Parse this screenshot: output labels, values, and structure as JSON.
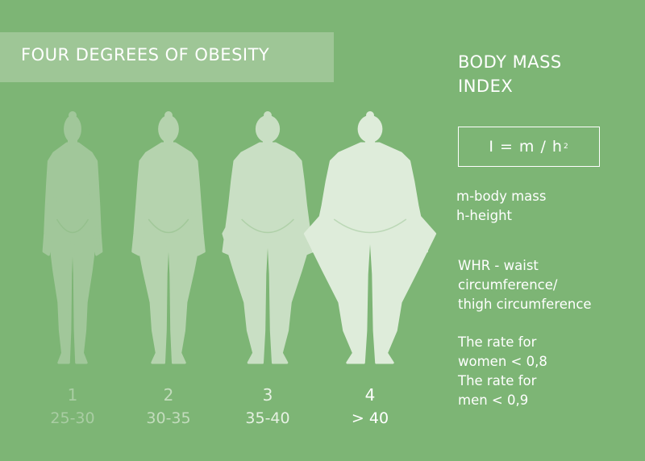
{
  "title": "FOUR DEGREES OF OBESITY",
  "bmi_title": [
    "BODY MASS",
    "INDEX"
  ],
  "formula": {
    "main": "I = m / h",
    "sup": "2"
  },
  "definitions": [
    "m-body mass",
    "h-height"
  ],
  "whr": [
    "WHR - waist",
    "circumference/",
    "thigh circumference"
  ],
  "rates": [
    "The rate for",
    "women < 0,8",
    "The rate for",
    "men < 0,9"
  ],
  "degrees": [
    {
      "number": "1",
      "range": "25-30",
      "fill": "#a1c79a",
      "num_color": "#a9cda3",
      "range_color": "#a9cda3"
    },
    {
      "number": "2",
      "range": "30-35",
      "fill": "#b5d3ae",
      "num_color": "#c3dcbd",
      "range_color": "#c3dcbd"
    },
    {
      "number": "3",
      "range": "35-40",
      "fill": "#c9dfc4",
      "num_color": "#e6f1e3",
      "range_color": "#e6f1e3"
    },
    {
      "number": "4",
      "range": "> 40",
      "fill": "#deecda",
      "num_color": "#ffffff",
      "range_color": "#ffffff"
    }
  ]
}
